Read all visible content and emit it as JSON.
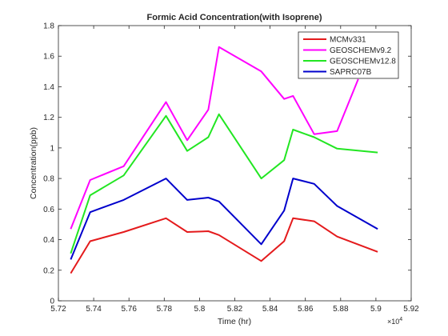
{
  "chart_data": {
    "type": "line",
    "title": "Formic Acid Concentration(with Isoprene)",
    "xlabel": "Time (hr)",
    "ylabel": "Concentration(ppb)",
    "x_exponent_label": "×10",
    "x_exponent_power": "4",
    "xlim": [
      5.72,
      5.92
    ],
    "ylim": [
      0,
      1.8
    ],
    "xticks": [
      5.72,
      5.74,
      5.76,
      5.78,
      5.8,
      5.82,
      5.84,
      5.86,
      5.88,
      5.9,
      5.92
    ],
    "xtick_labels": [
      "5.72",
      "5.74",
      "5.76",
      "5.78",
      "5.8",
      "5.82",
      "5.84",
      "5.86",
      "5.88",
      "5.9",
      "5.92"
    ],
    "yticks": [
      0,
      0.2,
      0.4,
      0.6,
      0.8,
      1,
      1.2,
      1.4,
      1.6,
      1.8
    ],
    "ytick_labels": [
      "0",
      "0.2",
      "0.4",
      "0.6",
      "0.8",
      "1",
      "1.2",
      "1.4",
      "1.6",
      "1.8"
    ],
    "grid": false,
    "legend_position": "top-right",
    "series": [
      {
        "name": "MCMv331",
        "color": "#e41a1c",
        "x": [
          5.727,
          5.738,
          5.757,
          5.781,
          5.793,
          5.805,
          5.811,
          5.835,
          5.848,
          5.853,
          5.865,
          5.878,
          5.901
        ],
        "y": [
          0.18,
          0.39,
          0.45,
          0.54,
          0.45,
          0.455,
          0.43,
          0.26,
          0.39,
          0.54,
          0.52,
          0.42,
          0.32
        ]
      },
      {
        "name": "GEOSCHEMv9.2",
        "color": "#ff00ff",
        "x": [
          5.727,
          5.738,
          5.757,
          5.781,
          5.793,
          5.805,
          5.811,
          5.835,
          5.848,
          5.853,
          5.865,
          5.878,
          5.89
        ],
        "y": [
          0.47,
          0.79,
          0.88,
          1.3,
          1.05,
          1.25,
          1.66,
          1.5,
          1.32,
          1.34,
          1.09,
          1.11,
          1.45
        ]
      },
      {
        "name": "GEOSCHEMv12.8",
        "color": "#22e622",
        "x": [
          5.727,
          5.738,
          5.757,
          5.781,
          5.793,
          5.805,
          5.811,
          5.835,
          5.848,
          5.853,
          5.865,
          5.878,
          5.901
        ],
        "y": [
          0.31,
          0.69,
          0.82,
          1.21,
          0.98,
          1.07,
          1.22,
          0.8,
          0.92,
          1.12,
          1.07,
          0.995,
          0.97
        ]
      },
      {
        "name": "SAPRC07B",
        "color": "#0000cc",
        "x": [
          5.727,
          5.738,
          5.757,
          5.781,
          5.793,
          5.805,
          5.811,
          5.835,
          5.848,
          5.853,
          5.865,
          5.878,
          5.901
        ],
        "y": [
          0.27,
          0.58,
          0.66,
          0.8,
          0.66,
          0.675,
          0.65,
          0.37,
          0.59,
          0.8,
          0.765,
          0.62,
          0.47
        ]
      }
    ]
  }
}
